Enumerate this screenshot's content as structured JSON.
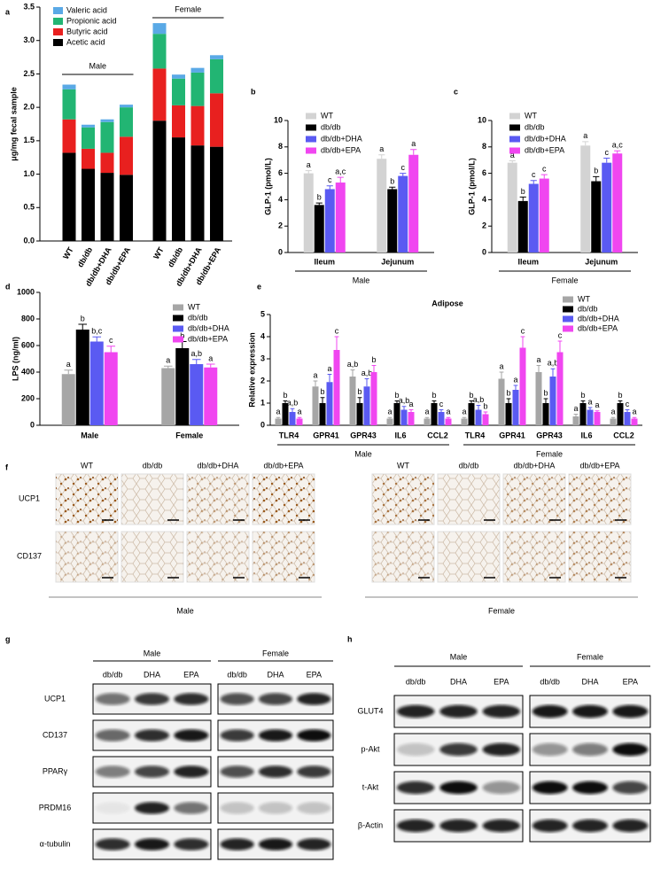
{
  "chart_data": [
    {
      "label": "a",
      "type": "stacked-bar",
      "ylabel": "μg/mg fecal sample",
      "categories": [
        "WT",
        "db/db",
        "db/db+DHA",
        "db/db+EPA",
        "WT",
        "db/db",
        "db/db+DHA",
        "db/db+EPA"
      ],
      "groups": [
        "Male",
        "Female"
      ],
      "series": [
        {
          "name": "Valeric acid",
          "color": "#5aa9e6",
          "values": [
            0.07,
            0.04,
            0.04,
            0.04,
            0.16,
            0.06,
            0.07,
            0.06
          ]
        },
        {
          "name": "Propionic acid",
          "color": "#22b573",
          "values": [
            0.45,
            0.32,
            0.46,
            0.44,
            0.52,
            0.4,
            0.5,
            0.51
          ]
        },
        {
          "name": "Butyric acid",
          "color": "#e8201f",
          "values": [
            0.5,
            0.3,
            0.3,
            0.57,
            0.78,
            0.48,
            0.59,
            0.8
          ]
        },
        {
          "name": "Acetic acid",
          "color": "#000000",
          "values": [
            1.32,
            1.08,
            1.02,
            0.99,
            1.8,
            1.55,
            1.43,
            1.41
          ]
        }
      ],
      "ylim": [
        0,
        3.5
      ],
      "yticks": [
        {
          "value": 0,
          "label": "0.0"
        },
        0.5,
        {
          "value": 1,
          "label": "1.0"
        },
        1.5,
        {
          "value": 2,
          "label": "2.0"
        },
        2.5,
        {
          "value": 3,
          "label": "3.0"
        },
        3.5
      ]
    },
    {
      "label": "b",
      "type": "grouped-bar",
      "ylabel": "GLP-1 (pmol/L)",
      "categories": [
        "Ileum",
        "Jejunum"
      ],
      "groups": [
        "Male"
      ],
      "series": [
        {
          "name": "WT",
          "color": "#d3d3d3",
          "values": [
            6.0,
            7.1
          ],
          "errors": [
            0.2,
            0.3
          ],
          "letters": [
            "a",
            "a"
          ]
        },
        {
          "name": "db/db",
          "color": "#000000",
          "values": [
            3.6,
            4.8
          ],
          "errors": [
            0.15,
            0.15
          ],
          "letters": [
            "b",
            "b"
          ]
        },
        {
          "name": "db/db+DHA",
          "color": "#5a5af2",
          "values": [
            4.8,
            5.8
          ],
          "errors": [
            0.25,
            0.2
          ],
          "letters": [
            "c",
            "c"
          ]
        },
        {
          "name": "db/db+EPA",
          "color": "#f046f0",
          "values": [
            5.3,
            7.4
          ],
          "errors": [
            0.4,
            0.4
          ],
          "letters": [
            "a,c",
            "a"
          ]
        }
      ],
      "ylim": [
        0,
        10
      ],
      "yticks": [
        0,
        2,
        4,
        6,
        8,
        10
      ]
    },
    {
      "label": "c",
      "type": "grouped-bar",
      "ylabel": "GLP-1 (pmol/L)",
      "categories": [
        "Ileum",
        "Jejunum"
      ],
      "groups": [
        "Female"
      ],
      "series": [
        {
          "name": "WT",
          "color": "#d3d3d3",
          "values": [
            6.8,
            8.1
          ],
          "errors": [
            0.15,
            0.3
          ],
          "letters": [
            "a",
            "a"
          ]
        },
        {
          "name": "db/db",
          "color": "#000000",
          "values": [
            3.9,
            5.4
          ],
          "errors": [
            0.3,
            0.35
          ],
          "letters": [
            "b",
            "b"
          ]
        },
        {
          "name": "db/db+DHA",
          "color": "#5a5af2",
          "values": [
            5.2,
            6.8
          ],
          "errors": [
            0.25,
            0.35
          ],
          "letters": [
            "c",
            "c"
          ]
        },
        {
          "name": "db/db+EPA",
          "color": "#f046f0",
          "values": [
            5.6,
            7.5
          ],
          "errors": [
            0.3,
            0.2
          ],
          "letters": [
            "c",
            "a,c"
          ]
        }
      ],
      "ylim": [
        0,
        10
      ],
      "yticks": [
        0,
        2,
        4,
        6,
        8,
        10
      ]
    },
    {
      "label": "d",
      "type": "grouped-bar",
      "ylabel": "LPS (ng/ml)",
      "categories": [
        "Male",
        "Female"
      ],
      "series": [
        {
          "name": "WT",
          "color": "#a6a6a6",
          "values": [
            385,
            430
          ],
          "errors": [
            30,
            15
          ],
          "letters": [
            "a",
            "a"
          ]
        },
        {
          "name": "db/db",
          "color": "#000000",
          "values": [
            720,
            580
          ],
          "errors": [
            40,
            50
          ],
          "letters": [
            "b",
            "b"
          ]
        },
        {
          "name": "db/db+DHA",
          "color": "#5a5af2",
          "values": [
            630,
            460
          ],
          "errors": [
            35,
            35
          ],
          "letters": [
            "b,c",
            "a,b"
          ]
        },
        {
          "name": "db/db+EPA",
          "color": "#f046f0",
          "values": [
            550,
            435
          ],
          "errors": [
            45,
            25
          ],
          "letters": [
            "c",
            "a"
          ]
        }
      ],
      "ylim": [
        0,
        1000
      ],
      "yticks": [
        0,
        200,
        400,
        600,
        800,
        1000
      ]
    },
    {
      "label": "e",
      "type": "grouped-bar",
      "title": "Adipose",
      "ylabel": "Relative expression",
      "categories": [
        "TLR4",
        "GPR41",
        "GPR43",
        "IL6",
        "CCL2",
        "TLR4",
        "GPR41",
        "GPR43",
        "IL6",
        "CCL2"
      ],
      "groups": [
        "Male",
        "Female"
      ],
      "series": [
        {
          "name": "WT",
          "color": "#a6a6a6",
          "values": [
            0.3,
            1.75,
            2.2,
            0.3,
            0.3,
            0.3,
            2.1,
            2.4,
            0.4,
            0.3
          ],
          "errors": [
            0.05,
            0.25,
            0.3,
            0.05,
            0.05,
            0.05,
            0.3,
            0.3,
            0.1,
            0.05
          ],
          "letters": [
            "a",
            "a",
            "a,b",
            "a",
            "a",
            "a",
            "a",
            "a",
            "a",
            "a"
          ]
        },
        {
          "name": "db/db",
          "color": "#000000",
          "values": [
            1.0,
            1.0,
            1.0,
            1.0,
            1.0,
            1.0,
            1.0,
            1.0,
            1.0,
            1.0
          ],
          "errors": [
            0.1,
            0.25,
            0.25,
            0.1,
            0.1,
            0.1,
            0.2,
            0.2,
            0.1,
            0.1
          ],
          "letters": [
            "b",
            "b",
            "b",
            "b",
            "b",
            "b",
            "b",
            "b",
            "b",
            "b"
          ]
        },
        {
          "name": "db/db+DHA",
          "color": "#5a5af2",
          "values": [
            0.6,
            1.95,
            1.75,
            0.7,
            0.6,
            0.7,
            1.6,
            2.2,
            0.7,
            0.6
          ],
          "errors": [
            0.15,
            0.35,
            0.35,
            0.15,
            0.1,
            0.2,
            0.2,
            0.35,
            0.1,
            0.1
          ],
          "letters": [
            "a,b",
            "a",
            "a,b",
            "a,b",
            "c",
            "a,b",
            "a",
            "a,b",
            "a",
            "c"
          ]
        },
        {
          "name": "db/db+EPA",
          "color": "#f046f0",
          "values": [
            0.3,
            3.4,
            2.4,
            0.6,
            0.3,
            0.5,
            3.5,
            3.3,
            0.6,
            0.3
          ],
          "errors": [
            0.05,
            0.6,
            0.3,
            0.1,
            0.05,
            0.1,
            0.5,
            0.5,
            0.05,
            0.05
          ],
          "letters": [
            "a",
            "c",
            "b",
            "a",
            "a",
            "b",
            "c",
            "c",
            "a",
            "a"
          ]
        }
      ],
      "ylim": [
        0,
        5
      ],
      "yticks": [
        0,
        1,
        2,
        3,
        4,
        5
      ]
    },
    {
      "label": "f",
      "type": "image-grid",
      "columns": [
        "WT",
        "db/db",
        "db/db+DHA",
        "db/db+EPA"
      ],
      "rows": [
        "UCP1",
        "CD137"
      ],
      "groups": [
        "Male",
        "Female"
      ]
    },
    {
      "label": "g",
      "type": "blot",
      "groups": [
        "Male",
        "Female"
      ],
      "lanes": [
        "db/db",
        "DHA",
        "EPA"
      ],
      "rows": [
        "UCP1",
        "CD137",
        "PPARγ",
        "PRDM16",
        "α-tubulin"
      ]
    },
    {
      "label": "h",
      "type": "blot",
      "groups": [
        "Male",
        "Female"
      ],
      "lanes": [
        "db/db",
        "DHA",
        "EPA"
      ],
      "rows": [
        "GLUT4",
        "p-Akt",
        "t-Akt",
        "β-Actin"
      ]
    }
  ]
}
